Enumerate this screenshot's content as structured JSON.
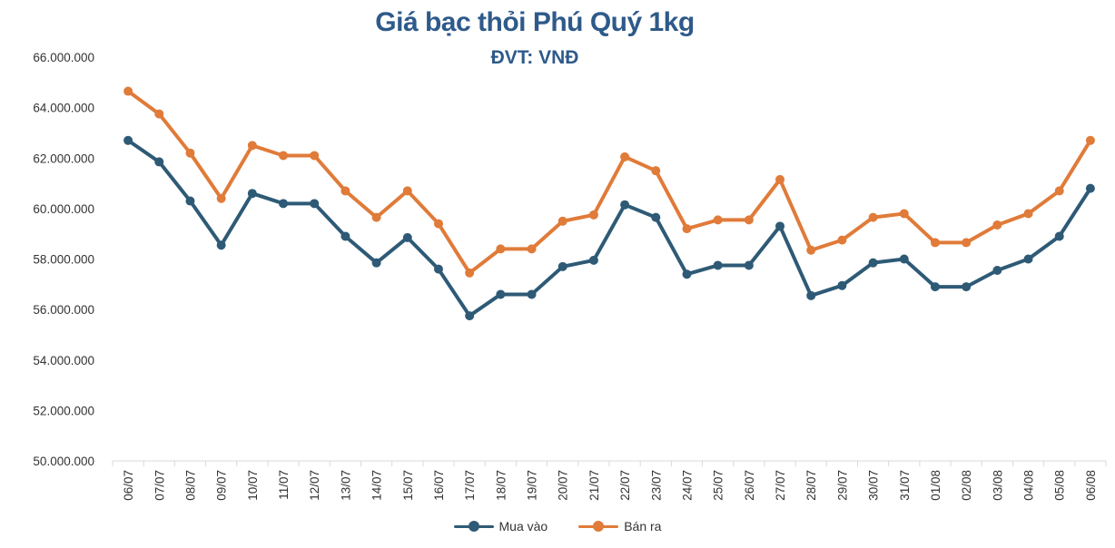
{
  "chart_data": {
    "type": "line",
    "title": "Giá bạc thỏi Phú Quý 1kg",
    "subtitle": "ĐVT: VNĐ",
    "xlabel": "",
    "ylabel": "",
    "ylim": [
      50000000,
      66000000
    ],
    "yticks": [
      50000000,
      52000000,
      54000000,
      56000000,
      58000000,
      60000000,
      62000000,
      64000000,
      66000000
    ],
    "ytick_labels": [
      "50.000.000",
      "52.000.000",
      "54.000.000",
      "56.000.000",
      "58.000.000",
      "60.000.000",
      "62.000.000",
      "64.000.000",
      "66.000.000"
    ],
    "grid": false,
    "legend_position": "bottom",
    "categories": [
      "06/07",
      "07/07",
      "08/07",
      "09/07",
      "10/07",
      "11/07",
      "12/07",
      "13/07",
      "14/07",
      "15/07",
      "16/07",
      "17/07",
      "18/07",
      "19/07",
      "20/07",
      "21/07",
      "22/07",
      "23/07",
      "24/07",
      "25/07",
      "26/07",
      "27/07",
      "28/07",
      "29/07",
      "30/07",
      "31/07",
      "01/08",
      "02/08",
      "03/08",
      "04/08",
      "05/08",
      "06/08"
    ],
    "series": [
      {
        "name": "Mua vào",
        "color": "#2E5A76",
        "values": [
          62700000,
          61850000,
          60300000,
          58550000,
          60600000,
          60200000,
          60200000,
          58900000,
          57850000,
          58850000,
          57600000,
          55750000,
          56600000,
          56600000,
          57700000,
          57950000,
          60150000,
          59650000,
          57400000,
          57750000,
          57750000,
          59300000,
          56550000,
          56950000,
          57850000,
          58000000,
          56900000,
          56900000,
          57550000,
          58000000,
          58900000,
          60800000
        ]
      },
      {
        "name": "Bán ra",
        "color": "#E07B39",
        "values": [
          64650000,
          63750000,
          62200000,
          60400000,
          62500000,
          62100000,
          62100000,
          60700000,
          59650000,
          60700000,
          59400000,
          57450000,
          58400000,
          58400000,
          59500000,
          59750000,
          62050000,
          61500000,
          59200000,
          59550000,
          59550000,
          61150000,
          58350000,
          58750000,
          59650000,
          59800000,
          58650000,
          58650000,
          59350000,
          59800000,
          60700000,
          62700000
        ]
      }
    ]
  }
}
